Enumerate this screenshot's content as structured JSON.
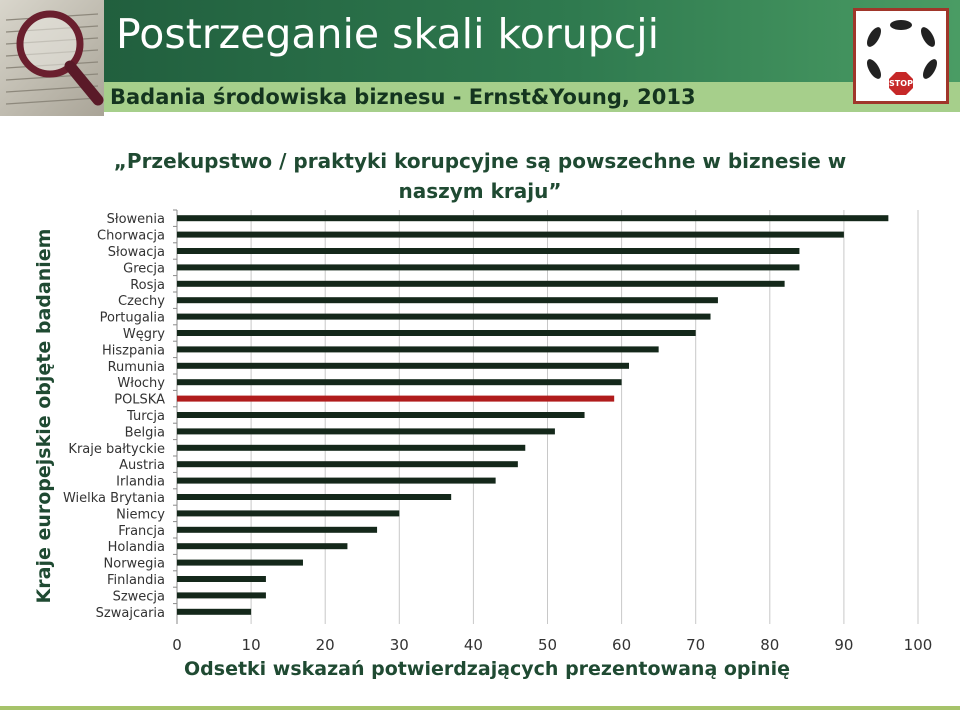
{
  "header": {
    "title": "Postrzeganie skali korupcji",
    "subtitle": "Badania środowiska biznesu - Ernst&Young, 2013",
    "photo_icon": "magnifier-newspaper-photo",
    "logo_icon": "fish-circle-stop-logo",
    "logo_text": "STOP"
  },
  "chart_data": {
    "type": "bar",
    "orientation": "horizontal",
    "title_lines": [
      "„Przekupstwo / praktyki korupcyjne są powszechne w biznesie w",
      "naszym kraju”"
    ],
    "xlabel": "Odsetki wskazań potwierdzających prezentowaną opinię",
    "ylabel": "Kraje europejskie objęte badaniem",
    "xlim": [
      0,
      100
    ],
    "xticks": [
      0,
      10,
      20,
      30,
      40,
      50,
      60,
      70,
      80,
      90,
      100
    ],
    "grid": "vertical",
    "bar_color": "#14281a",
    "highlight_color": "#b01c1c",
    "highlight_category": "POLSKA",
    "categories": [
      "Słowenia",
      "Chorwacja",
      "Słowacja",
      "Grecja",
      "Rosja",
      "Czechy",
      "Portugalia",
      "Węgry",
      "Hiszpania",
      "Rumunia",
      "Włochy",
      "POLSKA",
      "Turcja",
      "Belgia",
      "Kraje bałtyckie",
      "Austria",
      "Irlandia",
      "Wielka Brytania",
      "Niemcy",
      "Francja",
      "Holandia",
      "Norwegia",
      "Finlandia",
      "Szwecja",
      "Szwajcaria"
    ],
    "values": [
      96,
      90,
      84,
      84,
      82,
      73,
      72,
      70,
      65,
      61,
      60,
      59,
      55,
      51,
      47,
      46,
      43,
      37,
      30,
      27,
      23,
      17,
      12,
      12,
      10
    ]
  }
}
